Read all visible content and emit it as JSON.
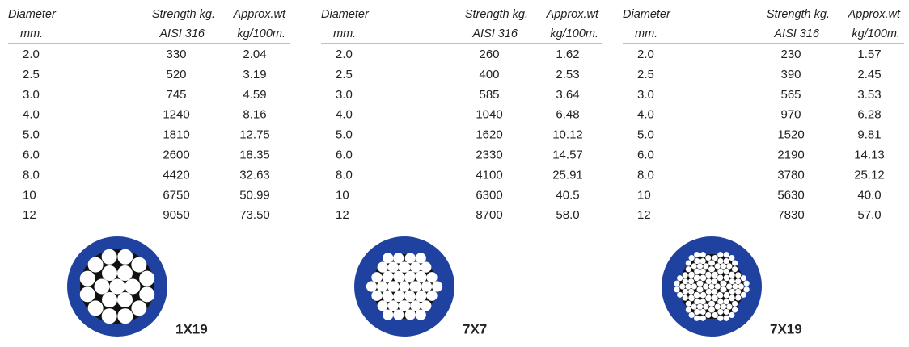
{
  "tables": [
    {
      "header": [
        [
          "Diameter",
          "Strength kg.",
          "Approx.wt"
        ],
        [
          "mm.",
          "AISI 316",
          "kg/100m."
        ]
      ],
      "rows": [
        [
          "2.0",
          "330",
          "2.04"
        ],
        [
          "2.5",
          "520",
          "3.19"
        ],
        [
          "3.0",
          "745",
          "4.59"
        ],
        [
          "4.0",
          "1240",
          "8.16"
        ],
        [
          "5.0",
          "1810",
          "12.75"
        ],
        [
          "6.0",
          "2600",
          "18.35"
        ],
        [
          "8.0",
          "4420",
          "32.63"
        ],
        [
          "10",
          "6750",
          "50.99"
        ],
        [
          "12",
          "9050",
          "73.50"
        ]
      ],
      "label": "1X19"
    },
    {
      "header": [
        [
          "Diameter",
          "Strength kg.",
          "Approx.wt"
        ],
        [
          "mm.",
          "AISI 316",
          "kg/100m."
        ]
      ],
      "rows": [
        [
          "2.0",
          "260",
          "1.62"
        ],
        [
          "2.5",
          "400",
          "2.53"
        ],
        [
          "3.0",
          "585",
          "3.64"
        ],
        [
          "4.0",
          "1040",
          "6.48"
        ],
        [
          "5.0",
          "1620",
          "10.12"
        ],
        [
          "6.0",
          "2330",
          "14.57"
        ],
        [
          "8.0",
          "4100",
          "25.91"
        ],
        [
          "10",
          "6300",
          "40.5"
        ],
        [
          "12",
          "8700",
          "58.0"
        ]
      ],
      "label": "7X7"
    },
    {
      "header": [
        [
          "Diameter",
          "Strength kg.",
          "Approx.wt"
        ],
        [
          "mm.",
          "AISI 316",
          "kg/100m."
        ]
      ],
      "rows": [
        [
          "2.0",
          "230",
          "1.57"
        ],
        [
          "2.5",
          "390",
          "2.45"
        ],
        [
          "3.0",
          "565",
          "3.53"
        ],
        [
          "4.0",
          "970",
          "6.28"
        ],
        [
          "5.0",
          "1520",
          "9.81"
        ],
        [
          "6.0",
          "2190",
          "14.13"
        ],
        [
          "8.0",
          "3780",
          "25.12"
        ],
        [
          "10",
          "5630",
          "40.0"
        ],
        [
          "12",
          "7830",
          "57.0"
        ]
      ],
      "label": "7X19"
    }
  ]
}
